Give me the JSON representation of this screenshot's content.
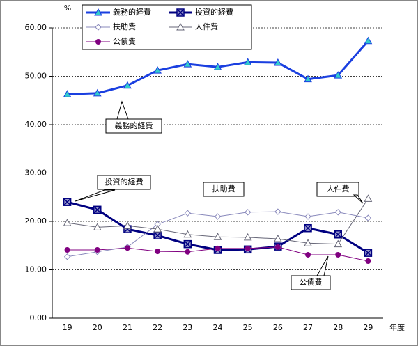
{
  "chart_data": {
    "type": "line",
    "y_label": "%",
    "x_label": "年度",
    "categories": [
      "19",
      "20",
      "21",
      "22",
      "23",
      "24",
      "25",
      "26",
      "27",
      "28",
      "29"
    ],
    "ylim": [
      0,
      60
    ],
    "yticks": [
      {
        "value": 0,
        "label": "0.00"
      },
      {
        "value": 10,
        "label": "10.00"
      },
      {
        "value": 20,
        "label": "20.00"
      },
      {
        "value": 30,
        "label": "30.00"
      },
      {
        "value": 40,
        "label": "40.00"
      },
      {
        "value": 50,
        "label": "50.00"
      },
      {
        "value": 60,
        "label": "60.00"
      }
    ],
    "grid": true,
    "series": [
      {
        "name": "義務的経費",
        "color": "#1a3fe0",
        "width": 3,
        "marker": "triangle",
        "marker_fill": "#33cccc",
        "values": [
          46.3,
          46.5,
          48.1,
          51.2,
          52.5,
          51.9,
          52.9,
          52.8,
          49.4,
          50.2,
          57.3
        ]
      },
      {
        "name": "投資的経費",
        "color": "#000080",
        "width": 3,
        "marker": "xsquare",
        "marker_fill": "#9999cc",
        "values": [
          24.0,
          22.4,
          18.4,
          17.1,
          15.3,
          14.1,
          14.2,
          14.8,
          18.6,
          17.3,
          13.5
        ]
      },
      {
        "name": "扶助費",
        "color": "#8888bb",
        "width": 1,
        "marker": "diamond",
        "marker_fill": "#ffffff",
        "values": [
          12.7,
          13.7,
          14.7,
          19.4,
          21.7,
          21.0,
          21.9,
          22.0,
          21.0,
          21.9,
          20.7
        ]
      },
      {
        "name": "人件費",
        "color": "#666677",
        "width": 1,
        "marker": "triangle",
        "marker_fill": "#ffffff",
        "values": [
          19.7,
          18.8,
          19.1,
          18.4,
          17.3,
          16.8,
          16.7,
          16.4,
          15.5,
          15.3,
          24.7
        ]
      },
      {
        "name": "公債費",
        "color": "#800080",
        "width": 1,
        "marker": "circle",
        "marker_fill": "#800080",
        "values": [
          14.1,
          14.1,
          14.5,
          13.8,
          13.7,
          14.4,
          14.4,
          14.7,
          13.1,
          13.1,
          11.8
        ]
      }
    ],
    "annotations": [
      "義務的経費",
      "投資的経費",
      "扶助費",
      "人件費",
      "公債費"
    ]
  }
}
